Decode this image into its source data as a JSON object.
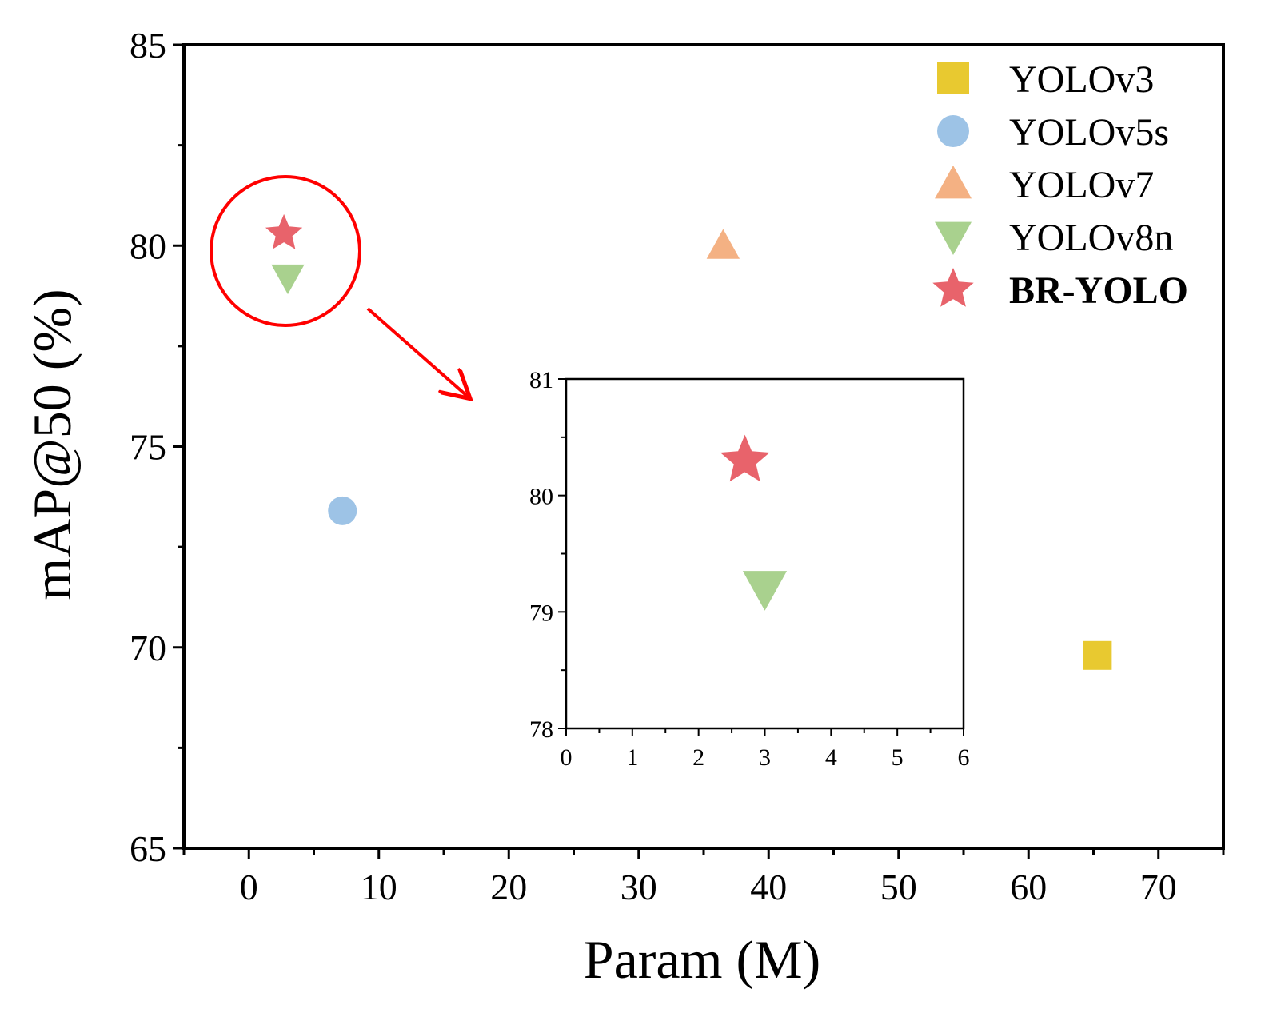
{
  "chart_data": {
    "type": "scatter",
    "xlabel": "Param (M)",
    "ylabel": "mAP@50 (%)",
    "xlim": [
      -5,
      75
    ],
    "ylim": [
      65,
      85
    ],
    "xticks": [
      0,
      10,
      20,
      30,
      40,
      50,
      60,
      70
    ],
    "yticks": [
      65,
      70,
      75,
      80,
      85
    ],
    "series": [
      {
        "name": "YOLOv3",
        "marker": "square",
        "color": "#E8C930",
        "x": 65.3,
        "y": 69.8,
        "bold": false
      },
      {
        "name": "YOLOv5s",
        "marker": "circle",
        "color": "#9DC3E6",
        "x": 7.2,
        "y": 73.4,
        "bold": false
      },
      {
        "name": "YOLOv7",
        "marker": "triangle-up",
        "color": "#F4B183",
        "x": 36.5,
        "y": 80.0,
        "bold": false
      },
      {
        "name": "YOLOv8n",
        "marker": "triangle-down",
        "color": "#A9D18E",
        "x": 3.0,
        "y": 79.2,
        "bold": false
      },
      {
        "name": "BR-YOLO",
        "marker": "star",
        "color": "#E8636B",
        "x": 2.7,
        "y": 80.3,
        "bold": true
      }
    ],
    "legend_position": "top-right",
    "inset": {
      "xlim": [
        0,
        6
      ],
      "ylim": [
        78,
        81
      ],
      "xticks": [
        0,
        1,
        2,
        3,
        4,
        5,
        6
      ],
      "yticks": [
        78,
        79,
        80,
        81
      ],
      "shown_series": [
        "YOLOv8n",
        "BR-YOLO"
      ]
    },
    "annotation": {
      "type": "circle-with-arrow",
      "color": "#FF0000",
      "target": "BR-YOLO and YOLOv8n cluster"
    }
  }
}
